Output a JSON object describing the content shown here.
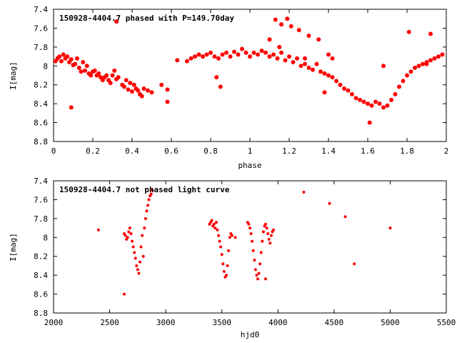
{
  "chart_data": [
    {
      "type": "scatter",
      "title": "150928-4404.7 phased with P=149.70day",
      "xlabel": "phase",
      "ylabel": "I[mag]",
      "xlim": [
        0,
        2
      ],
      "ylim": [
        7.4,
        8.8
      ],
      "y_inverted": true,
      "xticks": [
        "0",
        "0.2",
        "0.4",
        "0.6",
        "0.8",
        "1",
        "1.2",
        "1.4",
        "1.6",
        "1.8",
        "2"
      ],
      "yticks": [
        "7.4",
        "7.6",
        "7.8",
        "8",
        "8.2",
        "8.4",
        "8.6",
        "8.8"
      ],
      "marker": "filled-circle",
      "color": "#ff0000",
      "x": [
        0.01,
        0.02,
        0.03,
        0.04,
        0.05,
        0.06,
        0.07,
        0.08,
        0.09,
        0.1,
        0.11,
        0.12,
        0.13,
        0.14,
        0.15,
        0.16,
        0.17,
        0.18,
        0.19,
        0.2,
        0.21,
        0.22,
        0.23,
        0.24,
        0.25,
        0.26,
        0.27,
        0.28,
        0.29,
        0.3,
        0.31,
        0.32,
        0.33,
        0.35,
        0.36,
        0.37,
        0.38,
        0.39,
        0.4,
        0.41,
        0.42,
        0.43,
        0.44,
        0.45,
        0.46,
        0.48,
        0.5,
        0.55,
        0.58,
        0.09,
        0.32,
        0.58,
        0.63,
        0.68,
        0.7,
        0.72,
        0.74,
        0.76,
        0.78,
        0.8,
        0.82,
        0.84,
        0.86,
        0.88,
        0.9,
        0.92,
        0.94,
        0.96,
        0.98,
        1.0,
        1.02,
        1.04,
        1.06,
        1.08,
        1.1,
        1.12,
        1.14,
        1.16,
        1.18,
        1.2,
        1.22,
        1.24,
        1.26,
        1.28,
        1.3,
        1.32,
        1.34,
        1.36,
        1.38,
        1.4,
        1.42,
        1.44,
        1.46,
        1.48,
        1.5,
        1.52,
        1.54,
        1.56,
        1.58,
        1.6,
        1.62,
        1.64,
        1.66,
        1.68,
        1.7,
        1.72,
        1.74,
        1.76,
        1.78,
        1.8,
        1.82,
        1.84,
        1.86,
        1.88,
        1.9,
        1.92,
        1.94,
        1.96,
        1.98,
        0.83,
        0.85,
        1.13,
        1.16,
        1.19,
        1.21,
        1.25,
        1.3,
        1.35,
        1.4,
        1.42,
        1.61,
        1.81,
        1.92,
        1.1,
        1.15,
        1.28,
        1.38,
        1.68,
        1.9
      ],
      "y": [
        7.95,
        7.92,
        7.9,
        7.95,
        7.88,
        7.92,
        7.9,
        7.96,
        7.93,
        7.99,
        7.98,
        7.92,
        8.02,
        8.06,
        7.96,
        8.05,
        8.0,
        8.08,
        8.1,
        8.06,
        8.05,
        8.1,
        8.08,
        8.12,
        8.15,
        8.12,
        8.1,
        8.15,
        8.18,
        8.1,
        8.05,
        8.14,
        8.12,
        8.2,
        8.22,
        8.15,
        8.25,
        8.18,
        8.27,
        8.2,
        8.24,
        8.26,
        8.3,
        8.32,
        8.24,
        8.26,
        8.28,
        8.2,
        8.25,
        8.44,
        7.53,
        8.38,
        7.94,
        7.95,
        7.92,
        7.9,
        7.88,
        7.9,
        7.88,
        7.86,
        7.9,
        7.92,
        7.88,
        7.86,
        7.9,
        7.85,
        7.88,
        7.82,
        7.86,
        7.9,
        7.86,
        7.88,
        7.84,
        7.86,
        7.9,
        7.88,
        7.92,
        7.86,
        7.94,
        7.9,
        7.96,
        7.92,
        8.0,
        7.98,
        8.02,
        8.04,
        7.98,
        8.06,
        8.08,
        8.1,
        8.12,
        8.16,
        8.2,
        8.24,
        8.26,
        8.3,
        8.34,
        8.36,
        8.38,
        8.4,
        8.42,
        8.38,
        8.4,
        8.44,
        8.42,
        8.36,
        8.3,
        8.22,
        8.16,
        8.1,
        8.06,
        8.02,
        8.0,
        7.98,
        7.96,
        7.94,
        7.92,
        7.9,
        7.88,
        8.12,
        8.22,
        7.51,
        7.56,
        7.5,
        7.58,
        7.62,
        7.68,
        7.72,
        7.88,
        7.92,
        8.6,
        7.64,
        7.66,
        7.72,
        7.8,
        7.92,
        8.28,
        8.0,
        7.98
      ],
      "plot_area": "top"
    },
    {
      "type": "scatter",
      "title": "150928-4404.7 not phased light curve",
      "xlabel": "hjd0",
      "ylabel": "I[mag]",
      "xlim": [
        2000,
        5500
      ],
      "ylim": [
        7.4,
        8.8
      ],
      "y_inverted": true,
      "xticks": [
        "2000",
        "2500",
        "3000",
        "3500",
        "4000",
        "4500",
        "5000",
        "5500"
      ],
      "yticks": [
        "7.4",
        "7.6",
        "7.8",
        "8",
        "8.2",
        "8.4",
        "8.6",
        "8.8"
      ],
      "marker": "filled-circle",
      "color": "#ff0000",
      "x": [
        2400,
        2630,
        2640,
        2650,
        2660,
        2670,
        2680,
        2690,
        2700,
        2710,
        2720,
        2730,
        2740,
        2750,
        2760,
        2770,
        2780,
        2790,
        2800,
        2810,
        2820,
        2830,
        2840,
        2850,
        2860,
        2870,
        2880,
        2630,
        3390,
        3400,
        3410,
        3420,
        3430,
        3440,
        3450,
        3460,
        3470,
        3480,
        3490,
        3500,
        3510,
        3520,
        3530,
        3540,
        3550,
        3560,
        3570,
        3580,
        3590,
        3620,
        3730,
        3740,
        3750,
        3760,
        3770,
        3780,
        3790,
        3800,
        3810,
        3820,
        3830,
        3840,
        3850,
        3860,
        3870,
        3880,
        3890,
        3900,
        3910,
        3920,
        3930,
        3940,
        3950,
        3960,
        3890,
        4230,
        4460,
        4600,
        4680,
        5000
      ],
      "y": [
        7.92,
        7.96,
        7.98,
        8.02,
        8.0,
        7.94,
        7.9,
        7.96,
        8.04,
        8.1,
        8.16,
        8.22,
        8.3,
        8.34,
        8.38,
        8.26,
        8.1,
        7.98,
        8.2,
        7.9,
        7.8,
        7.72,
        7.66,
        7.6,
        7.56,
        7.54,
        7.5,
        8.6,
        7.86,
        7.84,
        7.82,
        7.88,
        7.86,
        7.9,
        7.84,
        7.92,
        7.98,
        8.04,
        8.1,
        8.18,
        8.28,
        8.36,
        8.42,
        8.4,
        8.3,
        8.14,
        8.0,
        7.96,
        7.98,
        8.0,
        7.84,
        7.86,
        7.9,
        7.96,
        8.04,
        8.14,
        8.24,
        8.34,
        8.4,
        8.44,
        8.38,
        8.28,
        8.16,
        8.04,
        7.94,
        7.88,
        7.86,
        7.9,
        7.96,
        8.02,
        8.06,
        7.98,
        7.94,
        7.92,
        8.44,
        7.52,
        7.64,
        7.78,
        8.28,
        7.9
      ],
      "plot_area": "bottom"
    }
  ]
}
